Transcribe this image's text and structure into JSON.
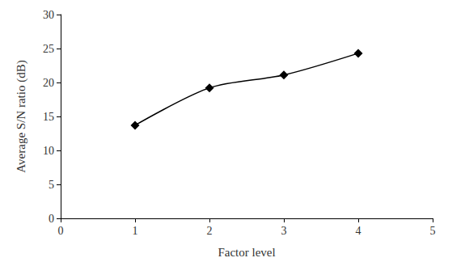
{
  "chart_data": {
    "type": "line",
    "x": [
      1,
      2,
      3,
      4
    ],
    "values": [
      13.7,
      19.2,
      21.1,
      24.3
    ],
    "xlabel": "Factor level",
    "ylabel": "Average S/N ratio (dB)",
    "xlim": [
      0,
      5
    ],
    "xticks": [
      0,
      1,
      2,
      3,
      4,
      5
    ],
    "ylim": [
      0,
      30
    ],
    "yticks": [
      0,
      5,
      10,
      15,
      20,
      25,
      30
    ],
    "color": "#000000",
    "marker": "diamond",
    "line_style": "solid",
    "grid": false
  }
}
